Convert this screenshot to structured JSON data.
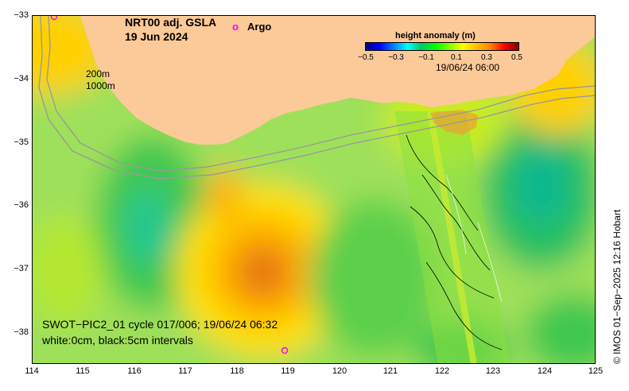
{
  "map": {
    "title_line1": "NRT00 adj. GSLA",
    "title_line2": "19 Jun 2024",
    "argo_marker": "o",
    "argo_label": "Argo",
    "depth_label_200": "200m",
    "depth_label_1000": "1000m",
    "colorbar": {
      "title": "height anomaly (m)",
      "ticks": [
        "−0.5",
        "−0.3",
        "−0.1",
        "0.1",
        "0.3",
        "0.5"
      ],
      "range": [
        -0.5,
        0.5
      ]
    },
    "colorbar_timestamp": "19/06/24 06:00",
    "swot_line1": "SWOT−PIC2_01 cycle 017/006; 19/06/24 06:32",
    "swot_line2": "white:0cm, black:5cm intervals",
    "x_ticks": [
      "114",
      "115",
      "116",
      "117",
      "118",
      "119",
      "120",
      "121",
      "122",
      "123",
      "124",
      "125"
    ],
    "y_ticks": [
      "−33",
      "−34",
      "−35",
      "−36",
      "−37",
      "−38"
    ],
    "lon_range": [
      114,
      125
    ],
    "lat_range": [
      -38.5,
      -33
    ],
    "copyright": "© IMOS 01−Sep−2025 12:16 Hobart",
    "colors": {
      "land": "#fcc998",
      "argo": "#ff00ff"
    }
  }
}
